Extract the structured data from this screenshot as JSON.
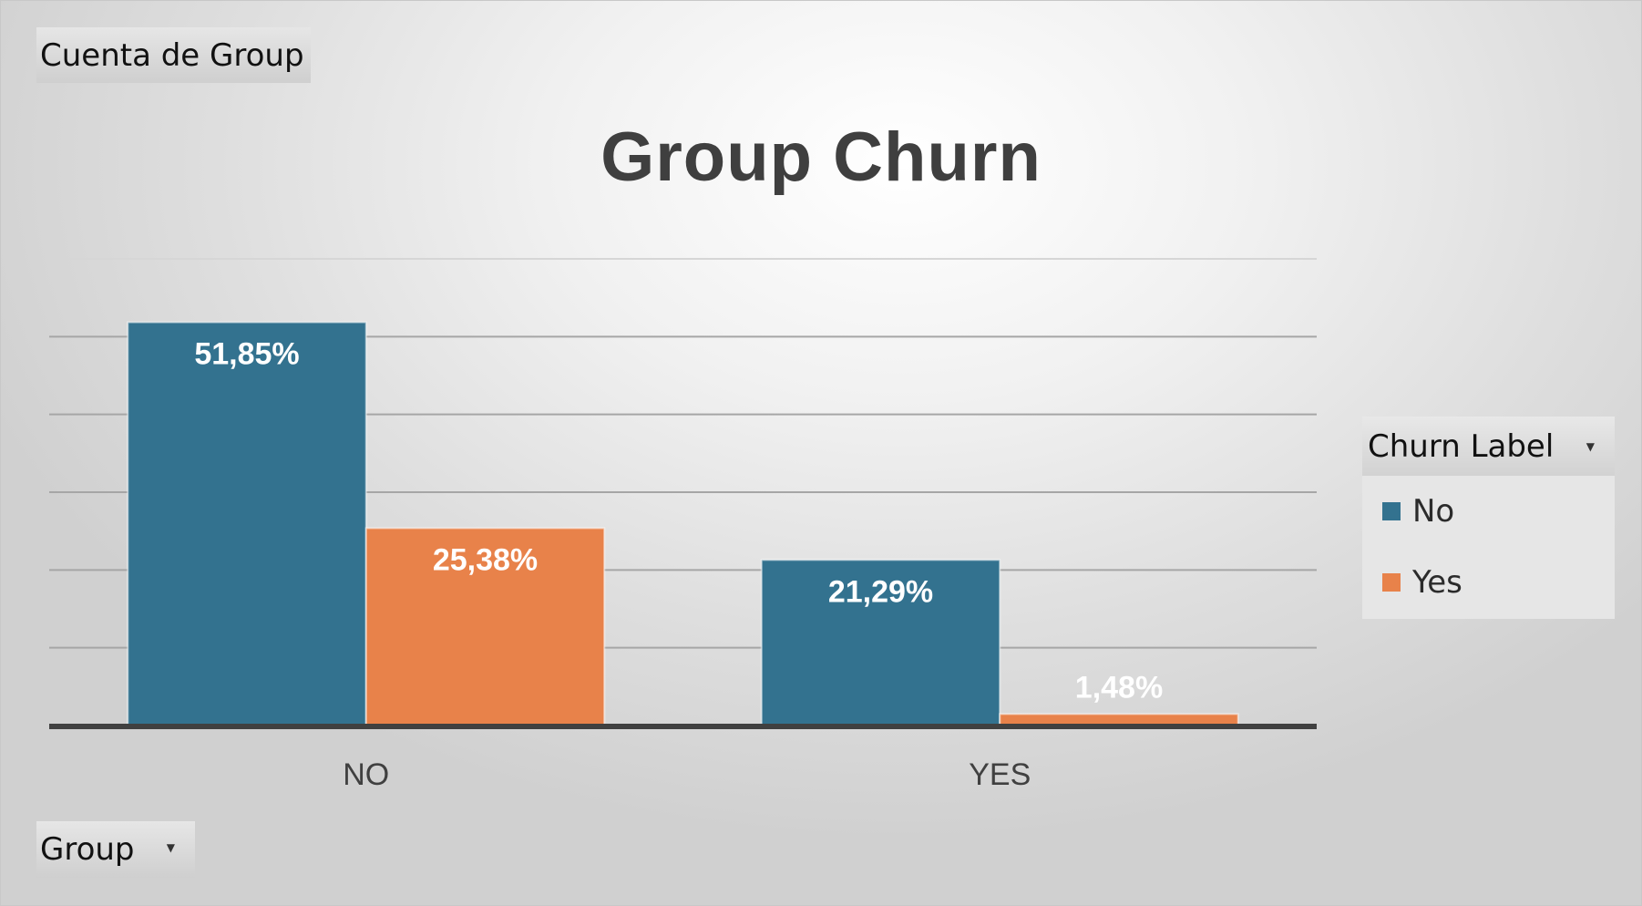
{
  "value_field": {
    "label": "Cuenta de Group"
  },
  "axis_field": {
    "label": "Group"
  },
  "legend": {
    "title": "Churn Label",
    "position": "right",
    "items": [
      {
        "label": "No",
        "color": "#33728f",
        "icon": "square-swatch"
      },
      {
        "label": "Yes",
        "color": "#e8824a",
        "icon": "square-swatch"
      }
    ]
  },
  "colors": {
    "no": "#33728f",
    "yes": "#e8824a",
    "axis_line": "#404040",
    "gridline": "#a6a6a6"
  },
  "chart_data": {
    "type": "bar",
    "title": "Group Churn",
    "xlabel": "",
    "ylabel": "",
    "categories": [
      "NO",
      "YES"
    ],
    "series": [
      {
        "name": "No",
        "values": [
          51.85,
          21.29
        ],
        "labels": [
          "51,85%",
          "21,29%"
        ]
      },
      {
        "name": "Yes",
        "values": [
          25.38,
          1.48
        ],
        "labels": [
          "25,38%",
          "1,48%"
        ]
      }
    ],
    "ylim": [
      0,
      60
    ],
    "grid": true,
    "y_tick_labels_visible": false,
    "legend_position": "right"
  }
}
